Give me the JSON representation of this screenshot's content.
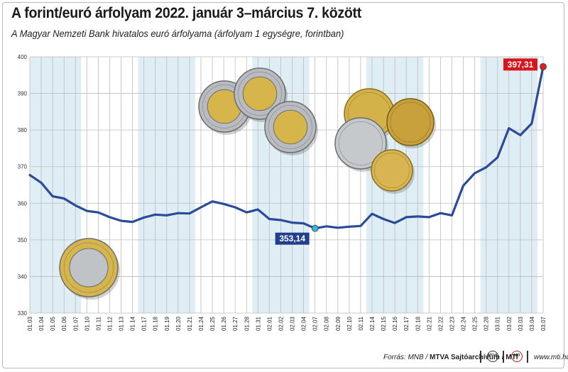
{
  "title": "A forint/euró árfolyam 2022. január 3–március 7. között",
  "subtitle": "A Magyar Nemzeti Bank hivatalos euró árfolyama (árfolyam 1 egységre, forintban)",
  "footer": {
    "source_prefix": "Forrás: MNB / ",
    "source_bold": "MTVA Sajtóarchívum / MTI",
    "url": "www.mti.hu"
  },
  "colors": {
    "line": "#2a4a9a",
    "band": "#dfeef5",
    "grid": "#bcbcbc",
    "max_marker": "#e02020",
    "min_marker": "#33b8e0",
    "max_label_bg": "#d9141b",
    "min_label_bg": "#1f3f8f"
  },
  "chart_data": {
    "type": "line",
    "ylim": [
      330,
      400
    ],
    "yticks": [
      330,
      340,
      350,
      360,
      370,
      380,
      390,
      400
    ],
    "grid": true,
    "categories": [
      "01.03",
      "01.04",
      "01.05",
      "01.06",
      "01.07",
      "01.10",
      "01.11",
      "01.12",
      "01.13",
      "01.14",
      "01.17",
      "01.18",
      "01.19",
      "01.20",
      "01.21",
      "01.24",
      "01.25",
      "01.26",
      "01.27",
      "01.28",
      "01.31",
      "02.01",
      "02.02",
      "02.03",
      "02.04",
      "02.07",
      "02.08",
      "02.09",
      "02.10",
      "02.11",
      "02.14",
      "02.15",
      "02.16",
      "02.17",
      "02.18",
      "02.21",
      "02.22",
      "02.23",
      "02.24",
      "02.25",
      "02.28",
      "03.01",
      "03.02",
      "03.03",
      "03.04",
      "03.07"
    ],
    "values": [
      367.7,
      365.6,
      361.9,
      361.3,
      359.4,
      357.9,
      357.5,
      356.2,
      355.2,
      354.9,
      356.1,
      356.9,
      356.7,
      357.3,
      357.2,
      358.9,
      360.5,
      359.8,
      358.9,
      357.5,
      358.3,
      355.7,
      355.4,
      354.7,
      354.5,
      353.14,
      353.7,
      353.3,
      353.6,
      353.8,
      357.1,
      355.7,
      354.6,
      356.2,
      356.4,
      356.2,
      357.3,
      356.7,
      364.8,
      368.2,
      369.8,
      372.5,
      380.5,
      378.6,
      381.8,
      397.31
    ],
    "week_bands": [
      [
        0,
        4
      ],
      [
        10,
        14
      ],
      [
        20,
        24
      ],
      [
        30,
        34
      ],
      [
        40,
        44
      ]
    ],
    "annotations": [
      {
        "label": "397,31",
        "index": 45,
        "kind": "max"
      },
      {
        "label": "353,14",
        "index": 25,
        "kind": "min"
      }
    ]
  }
}
